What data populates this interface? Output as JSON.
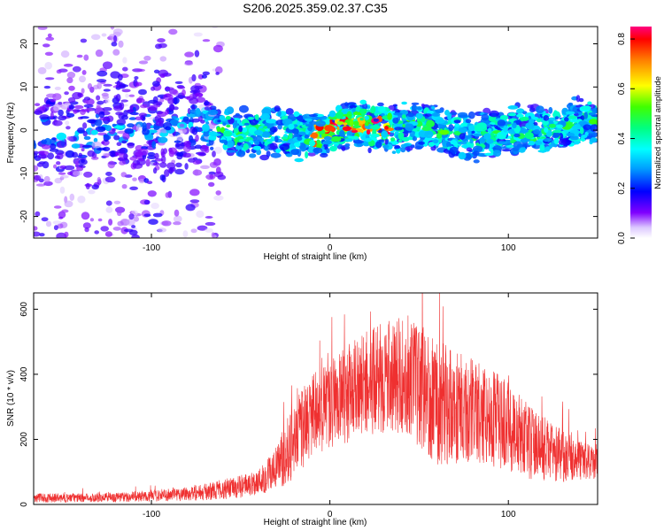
{
  "title": "S206.2025.359.02.37.C35",
  "chart_data": [
    {
      "type": "heatmap",
      "name": "spectrogram",
      "xlabel": "Height of straight line (km)",
      "ylabel": "Frequency (Hz)",
      "xlim": [
        -166,
        150
      ],
      "ylim": [
        -25,
        24
      ],
      "xticks": [
        -100,
        0,
        100
      ],
      "xtick_labels": [
        "-100",
        "0",
        "100"
      ],
      "yticks": [
        -20,
        -10,
        0,
        10,
        20
      ],
      "ytick_labels": [
        "-20",
        "-10",
        "0",
        "10",
        "20"
      ],
      "colorbar": {
        "label": "Normalized spectral amplitude",
        "range": [
          0,
          0.85
        ],
        "ticks": [
          0,
          0.2,
          0.4,
          0.6,
          0.8
        ],
        "tick_labels": [
          "0.0",
          "0.2",
          "0.4",
          "0.6",
          "0.8"
        ]
      },
      "structure": {
        "band_center_hz": 0,
        "band_halfwidth_hz": [
          3,
          6
        ],
        "peak_amplitude_range_x_km": [
          -10,
          35
        ],
        "peak_amplitude": 0.8,
        "scattered_noise_x_km": [
          -166,
          -60
        ]
      }
    },
    {
      "type": "line",
      "name": "snr",
      "xlabel": "Height of straight line (km)",
      "ylabel": "SNR (10 * v/v)",
      "xlim": [
        -166,
        150
      ],
      "ylim": [
        0,
        650
      ],
      "xticks": [
        -100,
        0,
        100
      ],
      "xtick_labels": [
        "-100",
        "0",
        "100"
      ],
      "yticks": [
        0,
        200,
        400,
        600
      ],
      "ytick_labels": [
        "0",
        "200",
        "400",
        "600"
      ],
      "series": [
        {
          "name": "SNR",
          "color": "#ef3030",
          "envelope": {
            "x": [
              -166,
              -150,
              -130,
              -110,
              -90,
              -70,
              -50,
              -40,
              -30,
              -20,
              -10,
              0,
              10,
              20,
              30,
              40,
              50,
              60,
              70,
              80,
              90,
              100,
              110,
              120,
              130,
              140,
              150
            ],
            "mean": [
              20,
              20,
              21,
              24,
              30,
              38,
              55,
              70,
              110,
              200,
              270,
              310,
              340,
              370,
              390,
              395,
              370,
              320,
              300,
              290,
              270,
              240,
              200,
              170,
              150,
              135,
              125
            ],
            "spread": [
              14,
              14,
              14,
              16,
              20,
              26,
              35,
              40,
              70,
              120,
              130,
              140,
              150,
              160,
              170,
              180,
              190,
              200,
              180,
              160,
              150,
              140,
              120,
              100,
              80,
              60,
              50
            ]
          }
        }
      ]
    }
  ]
}
